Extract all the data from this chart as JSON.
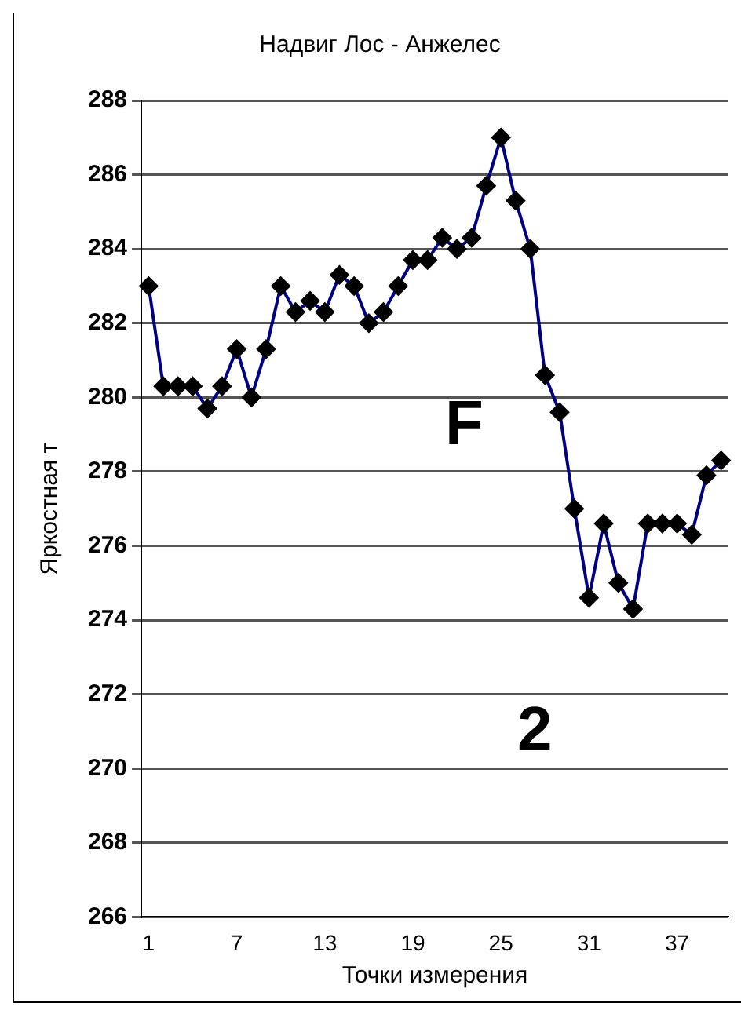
{
  "chart_data": {
    "type": "line",
    "title": "Надвиг Лос - Анжелес",
    "xlabel": "Точки измерения",
    "ylabel": "Яркостная т",
    "categories": [
      "1",
      null,
      null,
      null,
      null,
      null,
      "7",
      null,
      null,
      null,
      null,
      null,
      "13",
      null,
      null,
      null,
      null,
      null,
      "19",
      null,
      null,
      null,
      null,
      null,
      "25",
      null,
      null,
      null,
      null,
      null,
      "31",
      null,
      null,
      null,
      null,
      null,
      "37",
      null,
      null,
      null
    ],
    "series": [
      {
        "color": "#000080",
        "values": [
          283.0,
          280.3,
          280.3,
          280.3,
          279.7,
          280.3,
          281.3,
          280.0,
          281.3,
          283.0,
          282.3,
          282.6,
          282.3,
          283.3,
          283.0,
          282.0,
          282.3,
          283.0,
          283.7,
          283.7,
          284.3,
          284.0,
          284.3,
          285.7,
          287.0,
          285.3,
          284.0,
          280.6,
          279.6,
          277.0,
          274.6,
          276.6,
          275.0,
          274.3,
          276.6,
          276.6,
          276.6,
          276.3,
          277.9,
          278.3
        ]
      }
    ],
    "ylim": [
      266,
      288
    ],
    "yticks": [
      266,
      268,
      270,
      272,
      274,
      276,
      278,
      280,
      282,
      284,
      286,
      288
    ],
    "grid": "y",
    "legend": false,
    "marker": "diamond",
    "line_style": "solid",
    "annotations": [
      "F",
      "2"
    ]
  }
}
